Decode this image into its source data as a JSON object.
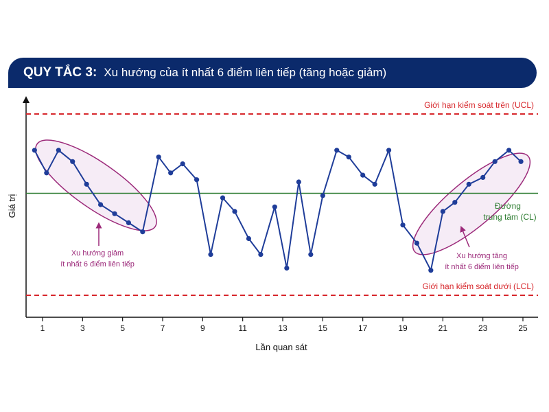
{
  "header": {
    "rule": "QUY TẮC 3:",
    "description": "Xu hướng của ít nhất 6 điểm liên tiếp (tăng hoặc giảm)"
  },
  "colors": {
    "header_bg": "#0b2a6b",
    "series": "#1f3d99",
    "limit": "#d7262b",
    "center": "#2e7d32",
    "highlight": "#9c2a7a",
    "highlight_fill": "#f6ecf6"
  },
  "chart_data": {
    "type": "line",
    "xlabel": "Lần quan sát",
    "ylabel": "Giá trị",
    "x_ticks": [
      1,
      3,
      5,
      7,
      9,
      11,
      13,
      15,
      17,
      19,
      21,
      23,
      25
    ],
    "xlim": [
      0.2,
      25.6
    ],
    "ylim": [
      0,
      10
    ],
    "grid": false,
    "series": [
      {
        "x": [
          0.6,
          1.2,
          1.8,
          2.5,
          3.2,
          3.9,
          4.6,
          5.3,
          6.0,
          6.8,
          7.4,
          8.0,
          8.7,
          9.4,
          10.0,
          10.6,
          11.3,
          11.9,
          12.6,
          13.2,
          13.8,
          14.4,
          15.0,
          15.7,
          16.3,
          17.0,
          17.6,
          18.3,
          19.0,
          19.7,
          20.4,
          21.0,
          21.6,
          22.3,
          23.0,
          23.6,
          24.3,
          24.9
        ],
        "y": [
          7.4,
          6.4,
          7.4,
          6.9,
          5.9,
          5.0,
          4.6,
          4.2,
          3.8,
          7.1,
          6.4,
          6.8,
          6.1,
          2.8,
          5.3,
          4.7,
          3.5,
          2.8,
          4.9,
          2.2,
          6.0,
          2.8,
          5.4,
          7.4,
          7.1,
          6.3,
          5.9,
          7.4,
          4.1,
          3.3,
          2.1,
          4.7,
          5.1,
          5.9,
          6.2,
          6.9,
          7.4,
          6.9
        ]
      }
    ],
    "lines": {
      "UCL": 9.0,
      "CL": 5.5,
      "LCL": 1.0
    },
    "annotations": {
      "ucl_label": "Giới hạn kiểm soát trên (UCL)",
      "lcl_label": "Giới hạn kiểm soát dưới (LCL)",
      "cl_label_1": "Đường",
      "cl_label_2": "trung tâm (CL)",
      "down_trend_1": "Xu hướng giảm",
      "down_trend_2": "ít nhất 6 điểm liên tiếp",
      "up_trend_1": "Xu hướng tăng",
      "up_trend_2": "ít nhất 6 điểm liên tiếp"
    }
  }
}
